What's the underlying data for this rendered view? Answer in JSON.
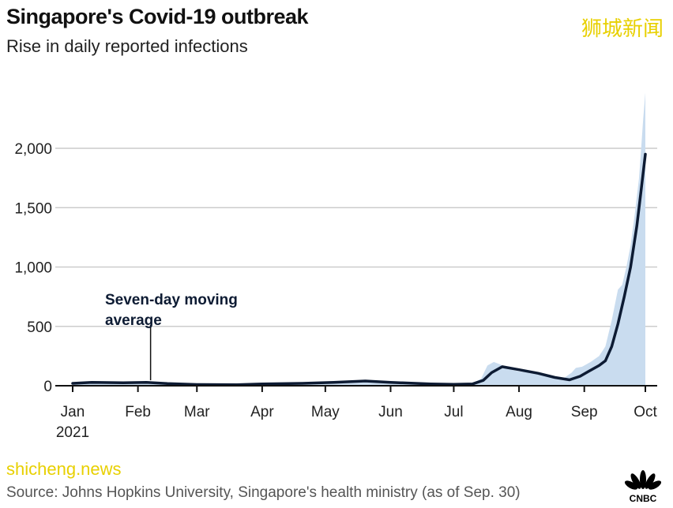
{
  "title": "Singapore's Covid-19 outbreak",
  "subtitle": "Rise in daily reported infections",
  "source": "Source: Johns Hopkins University, Singapore's health ministry (as of Sep. 30)",
  "watermark_top": "狮城新闻",
  "watermark_bottom": "shicheng.news",
  "logo": "CNBC",
  "chart_data": {
    "type": "area",
    "title": "Singapore's Covid-19 outbreak",
    "subtitle": "Rise in daily reported infections",
    "xlabel": "",
    "ylabel": "",
    "ylim": [
      0,
      2500
    ],
    "yticks": [
      0,
      500,
      1000,
      1500,
      2000
    ],
    "ytick_labels": [
      "0",
      "500",
      "1,000",
      "1,500",
      "2,000"
    ],
    "xticks": [
      "2021-01-01",
      "2021-02-01",
      "2021-03-01",
      "2021-04-01",
      "2021-05-01",
      "2021-06-01",
      "2021-07-01",
      "2021-08-01",
      "2021-09-01",
      "2021-09-30"
    ],
    "xtick_labels": [
      "Jan",
      "Feb",
      "Mar",
      "Apr",
      "May",
      "Jun",
      "Jul",
      "Aug",
      "Sep",
      "Oct"
    ],
    "year_label": "2021",
    "grid": true,
    "colors": {
      "daily": "#c9dcef",
      "average": "#0d1b33",
      "grid": "#cccccc"
    },
    "annotation": {
      "lines": [
        "Seven-day moving",
        "average"
      ],
      "date": "2021-02-07",
      "value": 20
    },
    "series": [
      {
        "name": "Daily reported infections",
        "type": "area",
        "points": [
          [
            "2021-01-01",
            25
          ],
          [
            "2021-01-15",
            30
          ],
          [
            "2021-02-01",
            30
          ],
          [
            "2021-02-15",
            20
          ],
          [
            "2021-03-01",
            15
          ],
          [
            "2021-03-15",
            12
          ],
          [
            "2021-04-01",
            20
          ],
          [
            "2021-04-15",
            25
          ],
          [
            "2021-05-01",
            30
          ],
          [
            "2021-05-15",
            35
          ],
          [
            "2021-05-22",
            45
          ],
          [
            "2021-06-01",
            30
          ],
          [
            "2021-06-15",
            20
          ],
          [
            "2021-07-01",
            15
          ],
          [
            "2021-07-10",
            20
          ],
          [
            "2021-07-14",
            60
          ],
          [
            "2021-07-17",
            170
          ],
          [
            "2021-07-20",
            200
          ],
          [
            "2021-07-23",
            180
          ],
          [
            "2021-07-27",
            140
          ],
          [
            "2021-08-01",
            120
          ],
          [
            "2021-08-08",
            110
          ],
          [
            "2021-08-15",
            80
          ],
          [
            "2021-08-22",
            60
          ],
          [
            "2021-08-26",
            110
          ],
          [
            "2021-08-28",
            150
          ],
          [
            "2021-08-31",
            160
          ],
          [
            "2021-09-04",
            200
          ],
          [
            "2021-09-08",
            250
          ],
          [
            "2021-09-11",
            330
          ],
          [
            "2021-09-14",
            550
          ],
          [
            "2021-09-17",
            810
          ],
          [
            "2021-09-19",
            850
          ],
          [
            "2021-09-21",
            1000
          ],
          [
            "2021-09-23",
            1180
          ],
          [
            "2021-09-25",
            1450
          ],
          [
            "2021-09-27",
            1750
          ],
          [
            "2021-09-28",
            2000
          ],
          [
            "2021-09-29",
            2250
          ],
          [
            "2021-09-30",
            2470
          ]
        ]
      },
      {
        "name": "Seven-day moving average",
        "type": "line",
        "points": [
          [
            "2021-01-01",
            20
          ],
          [
            "2021-01-10",
            28
          ],
          [
            "2021-01-25",
            25
          ],
          [
            "2021-02-05",
            28
          ],
          [
            "2021-02-15",
            18
          ],
          [
            "2021-03-01",
            10
          ],
          [
            "2021-03-20",
            8
          ],
          [
            "2021-04-01",
            15
          ],
          [
            "2021-04-20",
            20
          ],
          [
            "2021-05-05",
            28
          ],
          [
            "2021-05-20",
            40
          ],
          [
            "2021-06-01",
            28
          ],
          [
            "2021-06-20",
            15
          ],
          [
            "2021-07-01",
            12
          ],
          [
            "2021-07-10",
            15
          ],
          [
            "2021-07-15",
            45
          ],
          [
            "2021-07-19",
            110
          ],
          [
            "2021-07-24",
            160
          ],
          [
            "2021-08-01",
            135
          ],
          [
            "2021-08-10",
            105
          ],
          [
            "2021-08-18",
            70
          ],
          [
            "2021-08-25",
            50
          ],
          [
            "2021-08-30",
            80
          ],
          [
            "2021-09-03",
            120
          ],
          [
            "2021-09-08",
            170
          ],
          [
            "2021-09-11",
            210
          ],
          [
            "2021-09-14",
            330
          ],
          [
            "2021-09-17",
            520
          ],
          [
            "2021-09-20",
            750
          ],
          [
            "2021-09-23",
            1000
          ],
          [
            "2021-09-26",
            1350
          ],
          [
            "2021-09-28",
            1650
          ],
          [
            "2021-09-30",
            1950
          ]
        ]
      }
    ]
  }
}
